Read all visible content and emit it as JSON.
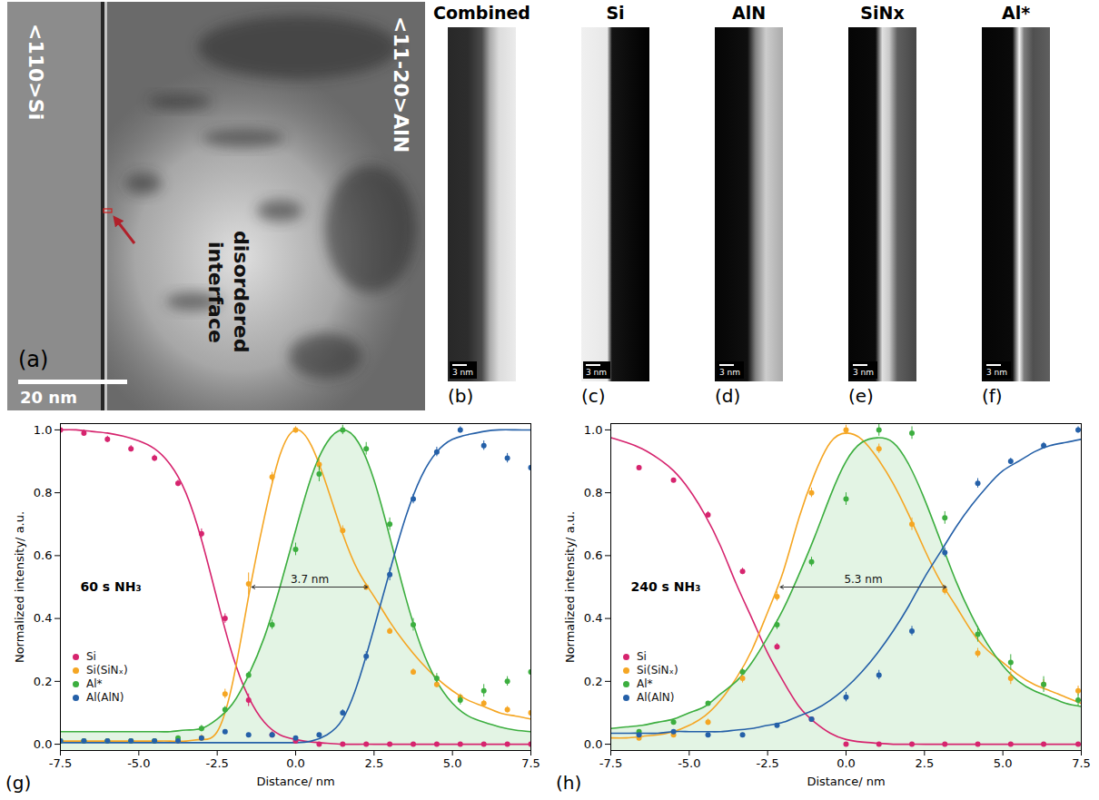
{
  "images": [
    {
      "label": "(a)",
      "texts": [
        "<110>Si",
        "<11-20>AlN",
        "disordered interface"
      ],
      "scale_bar": "20 nm"
    },
    {
      "label": "(b)",
      "title": "Combined",
      "scale_bar": "3 nm"
    },
    {
      "label": "(c)",
      "title": "Si",
      "scale_bar": "3 nm"
    },
    {
      "label": "(d)",
      "title": "AlN",
      "scale_bar": "3 nm"
    },
    {
      "label": "(e)",
      "title": "SiNx",
      "scale_bar": "3 nm"
    },
    {
      "label": "(f)",
      "title": "Al*",
      "scale_bar": "3 nm"
    }
  ],
  "chart_data": [
    {
      "type": "scatter",
      "label": "(g)",
      "title": "60 s NH₃",
      "x_label": "Distance/ nm",
      "y_label": "Normalized intensity/ a.u.",
      "xlim": [
        -7.5,
        7.5
      ],
      "xticks": [
        {
          "value": -7.5,
          "label": "-7.5"
        },
        {
          "value": -5,
          "label": "-5.0"
        },
        {
          "value": -2.5,
          "label": "-2.5"
        },
        {
          "value": 0,
          "label": "0.0"
        },
        {
          "value": 2.5,
          "label": "2.5"
        },
        {
          "value": 5,
          "label": "5.0"
        },
        {
          "value": 7.5,
          "label": "7.5"
        }
      ],
      "ylim": [
        -0.02,
        1.02
      ],
      "yticks": [
        {
          "value": 0,
          "label": "0.0"
        },
        {
          "value": 0.2,
          "label": "0.2"
        },
        {
          "value": 0.4,
          "label": "0.4"
        },
        {
          "value": 0.6,
          "label": "0.6"
        },
        {
          "value": 0.8,
          "label": "0.8"
        },
        {
          "value": 1,
          "label": "1.0"
        }
      ],
      "legend": "bottom-left",
      "annotations": [
        {
          "text": "3.7 nm",
          "x1": -1.4,
          "x2": 2.3,
          "y": 0.5
        }
      ],
      "x": [
        -7.5,
        -6.75,
        -6,
        -5.25,
        -4.5,
        -3.75,
        -3,
        -2.25,
        -1.5,
        -0.75,
        0,
        0.75,
        1.5,
        2.25,
        3,
        3.75,
        4.5,
        5.25,
        6,
        6.75,
        7.5
      ],
      "fit_x": [
        -7.5,
        -7,
        -6.5,
        -6,
        -5.5,
        -5,
        -4.5,
        -4,
        -3.5,
        -3,
        -2.5,
        -2,
        -1.5,
        -1,
        -0.5,
        0,
        0.5,
        1,
        1.5,
        2,
        2.5,
        3,
        3.5,
        4,
        4.5,
        5,
        5.5,
        6,
        6.5,
        7,
        7.5
      ],
      "series": [
        {
          "name": "Si",
          "color": "#d6246e",
          "values": [
            1.0,
            0.99,
            0.97,
            0.94,
            0.91,
            0.83,
            0.67,
            0.4,
            0.14,
            0.03,
            0.01,
            0.0,
            0.0,
            0.0,
            0.0,
            0.0,
            0.0,
            0.0,
            0.0,
            0.0,
            0.0
          ],
          "errors": [
            0.005,
            0.01,
            0.01,
            0.01,
            0.01,
            0.01,
            0.015,
            0.015,
            0.02,
            0.01,
            0.005,
            0.005,
            0.005,
            0.005,
            0.005,
            0.005,
            0.005,
            0.005,
            0.005,
            0.005,
            0.005
          ],
          "fit": [
            1.0,
            1.0,
            0.995,
            0.99,
            0.98,
            0.965,
            0.94,
            0.89,
            0.8,
            0.65,
            0.46,
            0.28,
            0.15,
            0.07,
            0.03,
            0.015,
            0.007,
            0.003,
            0,
            0,
            0,
            0,
            0,
            0,
            0,
            0,
            0,
            0,
            0,
            0,
            0
          ]
        },
        {
          "name": "Si(SiNₓ)",
          "color": "#f5a623",
          "values": [
            0.01,
            0.01,
            0.01,
            0.01,
            0.01,
            0.01,
            0.02,
            0.16,
            0.51,
            0.85,
            1.0,
            0.89,
            0.68,
            0.5,
            0.36,
            0.23,
            0.19,
            0.15,
            0.13,
            0.11,
            0.1
          ],
          "errors": [
            0.005,
            0.005,
            0.005,
            0.005,
            0.005,
            0.005,
            0.01,
            0.015,
            0.035,
            0.015,
            0.01,
            0.02,
            0.015,
            0.01,
            0.01,
            0.01,
            0.01,
            0.01,
            0.01,
            0.01,
            0.01
          ],
          "fit": [
            0.01,
            0.01,
            0.01,
            0.01,
            0.01,
            0.01,
            0.01,
            0.01,
            0.01,
            0.015,
            0.04,
            0.2,
            0.47,
            0.72,
            0.92,
            1.0,
            0.95,
            0.82,
            0.67,
            0.55,
            0.47,
            0.39,
            0.32,
            0.26,
            0.21,
            0.17,
            0.14,
            0.12,
            0.1,
            0.09,
            0.08
          ]
        },
        {
          "name": "Al*",
          "color": "#3cae3f",
          "type": "area",
          "values": [
            0.01,
            0.01,
            0.01,
            0.01,
            0.01,
            0.02,
            0.05,
            0.11,
            0.22,
            0.38,
            0.62,
            0.86,
            1.0,
            0.94,
            0.7,
            0.38,
            0.21,
            0.14,
            0.17,
            0.2,
            0.23
          ],
          "errors": [
            0.005,
            0.005,
            0.005,
            0.005,
            0.005,
            0.005,
            0.01,
            0.01,
            0.01,
            0.015,
            0.02,
            0.025,
            0.015,
            0.02,
            0.02,
            0.02,
            0.015,
            0.015,
            0.02,
            0.015,
            0.02
          ],
          "fit": [
            0.04,
            0.04,
            0.04,
            0.04,
            0.04,
            0.04,
            0.04,
            0.04,
            0.045,
            0.05,
            0.08,
            0.13,
            0.22,
            0.34,
            0.5,
            0.68,
            0.85,
            0.96,
            1.0,
            0.96,
            0.84,
            0.66,
            0.47,
            0.31,
            0.2,
            0.13,
            0.09,
            0.07,
            0.055,
            0.045,
            0.04
          ]
        },
        {
          "name": "Al(AlN)",
          "color": "#2560a8",
          "values": [
            0.01,
            0.01,
            0.01,
            0.01,
            0.01,
            0.01,
            0.02,
            0.04,
            0.03,
            0.03,
            0.02,
            0.03,
            0.1,
            0.28,
            0.54,
            0.78,
            0.93,
            1.0,
            0.95,
            0.91,
            0.88
          ],
          "errors": [
            0.005,
            0.005,
            0.005,
            0.005,
            0.005,
            0.005,
            0.005,
            0.005,
            0.005,
            0.005,
            0.005,
            0.005,
            0.01,
            0.015,
            0.02,
            0.015,
            0.015,
            0.01,
            0.015,
            0.015,
            0.015
          ],
          "fit": [
            0.005,
            0.005,
            0.005,
            0.005,
            0.005,
            0.005,
            0.005,
            0.005,
            0.005,
            0.005,
            0.005,
            0.005,
            0.005,
            0.005,
            0.005,
            0.005,
            0.01,
            0.03,
            0.08,
            0.2,
            0.37,
            0.55,
            0.72,
            0.85,
            0.93,
            0.97,
            0.985,
            0.995,
            1.0,
            1.0,
            1.0
          ]
        }
      ]
    },
    {
      "type": "scatter",
      "label": "(h)",
      "title": "240 s NH₃",
      "x_label": "Distance/ nm",
      "y_label": "Normalized intensity/ a.u.",
      "xlim": [
        -7.5,
        7.5
      ],
      "xticks": [
        {
          "value": -7.5,
          "label": "-7.5"
        },
        {
          "value": -5,
          "label": "-5.0"
        },
        {
          "value": -2.5,
          "label": "-2.5"
        },
        {
          "value": 0,
          "label": "0.0"
        },
        {
          "value": 2.5,
          "label": "2.5"
        },
        {
          "value": 5,
          "label": "5.0"
        },
        {
          "value": 7.5,
          "label": "7.5"
        }
      ],
      "ylim": [
        -0.02,
        1.02
      ],
      "yticks": [
        {
          "value": 0,
          "label": "0.0"
        },
        {
          "value": 0.2,
          "label": "0.2"
        },
        {
          "value": 0.4,
          "label": "0.4"
        },
        {
          "value": 0.6,
          "label": "0.6"
        },
        {
          "value": 0.8,
          "label": "0.8"
        },
        {
          "value": 1,
          "label": "1.0"
        }
      ],
      "legend": "bottom-left",
      "annotations": [
        {
          "text": "5.3 nm",
          "x1": -2.1,
          "x2": 3.2,
          "y": 0.5
        }
      ],
      "x": [
        -6.6,
        -5.5,
        -4.4,
        -3.3,
        -2.2,
        -1.1,
        0,
        1.05,
        2.1,
        3.15,
        4.2,
        5.25,
        6.3,
        7.4
      ],
      "fit_x": [
        -7.5,
        -7,
        -6.5,
        -6,
        -5.5,
        -5,
        -4.5,
        -4,
        -3.5,
        -3,
        -2.5,
        -2,
        -1.5,
        -1,
        -0.5,
        0,
        0.5,
        1,
        1.5,
        2,
        2.5,
        3,
        3.5,
        4,
        4.5,
        5,
        5.5,
        6,
        6.5,
        7,
        7.5
      ],
      "series": [
        {
          "name": "Si",
          "color": "#d6246e",
          "values": [
            0.88,
            0.84,
            0.73,
            0.55,
            0.31,
            0.08,
            0.0,
            0.0,
            0.0,
            0.0,
            0.0,
            0.0,
            0.0,
            0.0
          ],
          "errors": [
            0.005,
            0.005,
            0.01,
            0.01,
            0.01,
            0.005,
            0.005,
            0.005,
            0.005,
            0.005,
            0.005,
            0.005,
            0.005,
            0.005
          ],
          "fit": [
            0.975,
            0.96,
            0.94,
            0.91,
            0.87,
            0.81,
            0.73,
            0.63,
            0.51,
            0.4,
            0.29,
            0.2,
            0.12,
            0.07,
            0.035,
            0.015,
            0.007,
            0.003,
            0,
            0,
            0,
            0,
            0,
            0,
            0,
            0,
            0,
            0,
            0,
            0,
            0
          ]
        },
        {
          "name": "Si(SiNₓ)",
          "color": "#f5a623",
          "values": [
            0.02,
            0.03,
            0.07,
            0.21,
            0.47,
            0.8,
            1.0,
            0.94,
            0.7,
            0.49,
            0.29,
            0.21,
            0.19,
            0.17
          ],
          "errors": [
            0.005,
            0.005,
            0.01,
            0.015,
            0.015,
            0.015,
            0.015,
            0.015,
            0.02,
            0.015,
            0.015,
            0.02,
            0.015,
            0.015
          ],
          "fit": [
            0.02,
            0.02,
            0.025,
            0.03,
            0.04,
            0.06,
            0.09,
            0.14,
            0.21,
            0.3,
            0.42,
            0.55,
            0.72,
            0.86,
            0.96,
            0.99,
            0.97,
            0.91,
            0.83,
            0.73,
            0.62,
            0.52,
            0.44,
            0.36,
            0.3,
            0.26,
            0.22,
            0.19,
            0.17,
            0.15,
            0.13
          ]
        },
        {
          "name": "Al*",
          "color": "#3cae3f",
          "type": "area",
          "values": [
            0.04,
            0.07,
            0.13,
            0.23,
            0.38,
            0.58,
            0.78,
            1.0,
            0.99,
            0.72,
            0.35,
            0.26,
            0.19,
            0.14
          ],
          "errors": [
            0.005,
            0.005,
            0.005,
            0.01,
            0.015,
            0.015,
            0.02,
            0.02,
            0.02,
            0.02,
            0.025,
            0.025,
            0.025,
            0.02
          ],
          "fit": [
            0.05,
            0.055,
            0.06,
            0.07,
            0.08,
            0.1,
            0.12,
            0.16,
            0.2,
            0.26,
            0.34,
            0.43,
            0.54,
            0.66,
            0.79,
            0.9,
            0.96,
            0.975,
            0.96,
            0.89,
            0.78,
            0.65,
            0.52,
            0.41,
            0.32,
            0.25,
            0.2,
            0.17,
            0.15,
            0.13,
            0.12
          ]
        },
        {
          "name": "Al(AlN)",
          "color": "#2560a8",
          "values": [
            0.03,
            0.04,
            0.03,
            0.03,
            0.06,
            0.08,
            0.15,
            0.22,
            0.36,
            0.61,
            0.83,
            0.9,
            0.95,
            1.0
          ],
          "errors": [
            0.005,
            0.005,
            0.005,
            0.005,
            0.005,
            0.005,
            0.015,
            0.015,
            0.015,
            0.015,
            0.015,
            0.01,
            0.01,
            0.01
          ],
          "fit": [
            0.035,
            0.035,
            0.035,
            0.035,
            0.04,
            0.04,
            0.04,
            0.04,
            0.045,
            0.05,
            0.06,
            0.07,
            0.09,
            0.11,
            0.14,
            0.18,
            0.23,
            0.29,
            0.36,
            0.44,
            0.53,
            0.61,
            0.69,
            0.76,
            0.82,
            0.87,
            0.9,
            0.93,
            0.95,
            0.96,
            0.97
          ]
        }
      ]
    }
  ]
}
